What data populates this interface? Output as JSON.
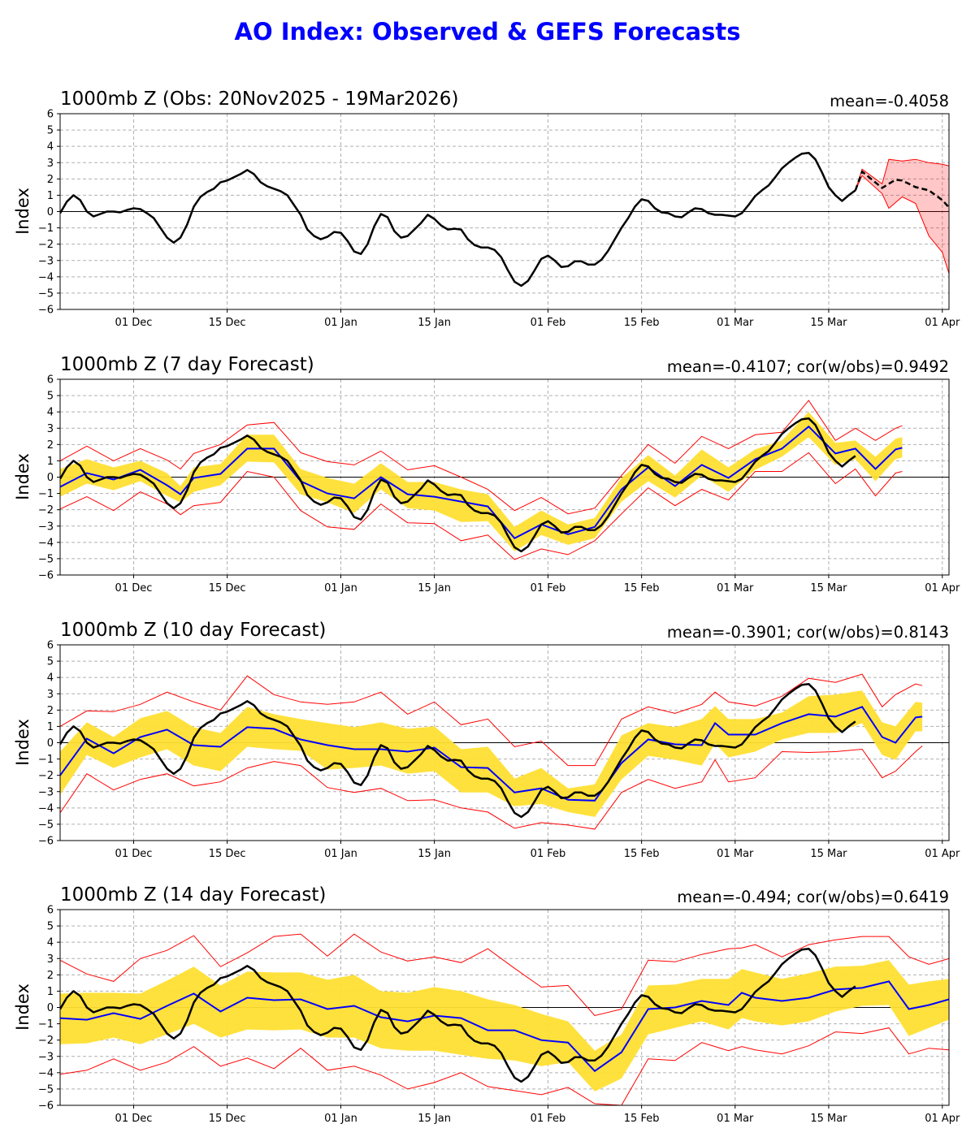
{
  "title": "AO Index: Observed & GEFS Forecasts",
  "colors": {
    "title": "#0000FF",
    "observed": "#000000",
    "forecast_mean": "#0000FF",
    "band": "#FFDF33",
    "ensemble": "#FF0000",
    "grid": "#B0B0B0"
  },
  "chart_data": [
    {
      "type": "line",
      "title": "1000mb Z (Obs: 20Nov2025 - 19Mar2026)",
      "stat": "mean=-0.4058",
      "ylabel": "Index",
      "ylim": [
        -6,
        6
      ],
      "xlim": [
        "2025-11-20",
        "2026-04-02"
      ],
      "grid": true,
      "yticks": [
        -6,
        -5,
        -4,
        -3,
        -2,
        -1,
        0,
        1,
        2,
        3,
        4,
        5,
        6
      ],
      "xticks": [
        {
          "date": "2025-12-01",
          "label": "01 Dec"
        },
        {
          "date": "2025-12-15",
          "label": "15 Dec"
        },
        {
          "date": "2026-01-01",
          "label": "01 Jan"
        },
        {
          "date": "2026-01-15",
          "label": "15 Jan"
        },
        {
          "date": "2026-02-01",
          "label": "01 Feb"
        },
        {
          "date": "2026-02-15",
          "label": "15 Feb"
        },
        {
          "date": "2026-03-01",
          "label": "01 Mar"
        },
        {
          "date": "2026-03-15",
          "label": "15 Mar"
        },
        {
          "date": "2026-04-01",
          "label": "01 Apr"
        }
      ],
      "ensemble_mean": {
        "dates": [
          "2026-03-19",
          "2026-03-20",
          "2026-03-23",
          "2026-03-25",
          "2026-03-26",
          "2026-03-28",
          "2026-03-30",
          "2026-04-01",
          "2026-04-02"
        ],
        "values": [
          1.3,
          2.45,
          1.45,
          1.95,
          1.9,
          1.5,
          1.3,
          0.7,
          0.25
        ]
      },
      "ensemble_spread": {
        "dates": [
          "2026-03-19",
          "2026-03-20",
          "2026-03-23",
          "2026-03-24",
          "2026-03-26",
          "2026-03-28",
          "2026-03-30",
          "2026-04-01",
          "2026-04-02"
        ],
        "max": [
          1.3,
          2.6,
          1.7,
          3.2,
          3.1,
          3.2,
          3.0,
          2.9,
          2.8
        ],
        "min": [
          1.3,
          2.2,
          1.1,
          0.2,
          0.9,
          0.5,
          -1.5,
          -2.5,
          -3.8
        ]
      }
    },
    {
      "type": "line",
      "title": "1000mb Z (7 day Forecast)",
      "stat": "mean=-0.4107; cor(w/obs)=0.9492",
      "ylabel": "Index",
      "ylim": [
        -6,
        6
      ],
      "forecast": {
        "dates": [
          "2025-11-20",
          "2025-11-24",
          "2025-11-28",
          "2025-12-02",
          "2025-12-06",
          "2025-12-08",
          "2025-12-10",
          "2025-12-14",
          "2025-12-18",
          "2025-12-22",
          "2025-12-26",
          "2025-12-30",
          "2026-01-03",
          "2026-01-07",
          "2026-01-11",
          "2026-01-15",
          "2026-01-19",
          "2026-01-23",
          "2026-01-27",
          "2026-01-31",
          "2026-02-04",
          "2026-02-08",
          "2026-02-12",
          "2026-02-16",
          "2026-02-20",
          "2026-02-24",
          "2026-02-28",
          "2026-03-04",
          "2026-03-08",
          "2026-03-12",
          "2026-03-16",
          "2026-03-19",
          "2026-03-22",
          "2026-03-25",
          "2026-03-26"
        ],
        "mean": [
          -0.6,
          0.25,
          -0.15,
          0.45,
          -0.5,
          -1.05,
          -0.05,
          0.2,
          1.75,
          1.75,
          -0.25,
          -1.0,
          -1.3,
          0.0,
          -1.05,
          -1.2,
          -1.5,
          -1.8,
          -3.75,
          -2.9,
          -3.5,
          -3.05,
          -0.75,
          0.6,
          -0.55,
          0.75,
          -0.05,
          1.1,
          1.75,
          3.1,
          1.45,
          1.75,
          0.5,
          1.7,
          1.8
        ],
        "band_low": [
          -1.2,
          -0.4,
          -0.8,
          -0.25,
          -1.15,
          -1.55,
          -0.9,
          -0.5,
          0.95,
          0.9,
          -1.05,
          -1.55,
          -2.2,
          -0.75,
          -1.9,
          -2.05,
          -2.75,
          -2.7,
          -4.55,
          -3.55,
          -4.15,
          -3.75,
          -1.5,
          -0.25,
          -1.25,
          0.1,
          -0.9,
          0.45,
          1.25,
          2.45,
          0.75,
          1.1,
          -0.25,
          1.1,
          1.2
        ],
        "band_high": [
          0.5,
          1.1,
          0.6,
          1.0,
          0.25,
          -0.55,
          0.6,
          0.8,
          2.6,
          2.6,
          0.5,
          -0.05,
          -0.4,
          0.85,
          -0.3,
          -0.3,
          -0.75,
          -1.05,
          -3.05,
          -2.05,
          -2.9,
          -2.5,
          -0.05,
          1.35,
          0.1,
          1.7,
          0.6,
          1.7,
          2.25,
          4.0,
          2.1,
          2.25,
          1.25,
          2.35,
          2.45
        ],
        "max": [
          1.0,
          1.9,
          1.0,
          1.75,
          1.05,
          0.5,
          1.45,
          2.0,
          3.2,
          3.35,
          1.5,
          0.95,
          0.75,
          1.6,
          0.45,
          0.7,
          0.0,
          -0.75,
          -2.05,
          -1.25,
          -2.25,
          -1.9,
          0.1,
          2.0,
          0.85,
          2.5,
          1.75,
          2.6,
          2.75,
          4.7,
          2.25,
          3.0,
          2.25,
          3.0,
          3.15
        ],
        "min": [
          -1.95,
          -1.2,
          -2.05,
          -0.9,
          -1.65,
          -2.3,
          -1.75,
          -1.55,
          0.35,
          0.0,
          -2.05,
          -3.05,
          -3.2,
          -1.65,
          -2.8,
          -2.85,
          -3.9,
          -3.55,
          -5.05,
          -4.4,
          -4.75,
          -3.9,
          -2.25,
          -0.65,
          -1.75,
          -0.75,
          -1.4,
          0.35,
          0.35,
          1.5,
          -0.4,
          0.5,
          -1.15,
          0.25,
          0.35
        ]
      }
    },
    {
      "type": "line",
      "title": "1000mb Z (10 day Forecast)",
      "stat": "mean=-0.3901; cor(w/obs)=0.8143",
      "ylabel": "Index",
      "ylim": [
        -6,
        6
      ],
      "forecast": {
        "dates": [
          "2025-11-20",
          "2025-11-24",
          "2025-11-28",
          "2025-12-02",
          "2025-12-06",
          "2025-12-10",
          "2025-12-14",
          "2025-12-18",
          "2025-12-22",
          "2025-12-26",
          "2025-12-30",
          "2026-01-03",
          "2026-01-07",
          "2026-01-11",
          "2026-01-15",
          "2026-01-19",
          "2026-01-23",
          "2026-01-27",
          "2026-01-31",
          "2026-02-04",
          "2026-02-08",
          "2026-02-12",
          "2026-02-16",
          "2026-02-20",
          "2026-02-24",
          "2026-02-26",
          "2026-02-28",
          "2026-03-04",
          "2026-03-08",
          "2026-03-12",
          "2026-03-16",
          "2026-03-20",
          "2026-03-23",
          "2026-03-25",
          "2026-03-28",
          "2026-03-29"
        ],
        "mean": [
          -2.0,
          0.25,
          -0.65,
          0.35,
          0.8,
          -0.15,
          -0.25,
          0.95,
          0.85,
          0.2,
          -0.15,
          -0.4,
          -0.4,
          -0.55,
          -0.3,
          -1.5,
          -1.55,
          -3.05,
          -2.8,
          -3.5,
          -3.55,
          -1.25,
          0.2,
          -0.1,
          -0.15,
          1.2,
          0.5,
          0.5,
          1.2,
          1.75,
          1.6,
          2.2,
          0.35,
          0.0,
          1.55,
          1.6
        ],
        "band_low": [
          -3.2,
          -0.75,
          -1.55,
          -0.9,
          -0.4,
          -1.4,
          -1.75,
          -0.25,
          -0.4,
          -0.5,
          -1.65,
          -1.55,
          -1.4,
          -1.9,
          -1.75,
          -3.05,
          -3.05,
          -3.9,
          -3.75,
          -4.25,
          -4.55,
          -2.25,
          -0.8,
          -1.05,
          -1.4,
          -0.05,
          -0.9,
          -0.55,
          0.2,
          0.6,
          0.6,
          1.2,
          -0.75,
          -1.05,
          0.7,
          0.7
        ],
        "band_high": [
          -0.55,
          1.25,
          0.35,
          1.5,
          1.95,
          0.95,
          0.6,
          2.2,
          1.75,
          1.45,
          1.2,
          0.95,
          1.25,
          0.85,
          1.0,
          -0.4,
          -0.25,
          -2.2,
          -1.55,
          -2.8,
          -2.55,
          0.45,
          1.2,
          0.95,
          1.45,
          2.25,
          1.45,
          1.45,
          1.85,
          2.85,
          2.95,
          3.2,
          1.25,
          1.0,
          2.5,
          2.45
        ],
        "max": [
          1.0,
          1.95,
          1.9,
          2.35,
          3.1,
          2.5,
          2.0,
          4.1,
          2.95,
          2.5,
          2.35,
          2.5,
          3.1,
          1.75,
          2.5,
          1.1,
          1.45,
          -0.25,
          0.1,
          -1.4,
          -1.4,
          1.45,
          2.2,
          1.8,
          2.35,
          3.1,
          2.5,
          2.25,
          2.85,
          3.95,
          3.7,
          4.2,
          2.2,
          2.95,
          3.6,
          3.5
        ],
        "min": [
          -4.3,
          -1.9,
          -2.9,
          -2.25,
          -1.9,
          -2.65,
          -2.4,
          -1.55,
          -1.15,
          -1.4,
          -2.75,
          -3.05,
          -2.8,
          -3.55,
          -3.5,
          -4.0,
          -4.25,
          -5.25,
          -4.9,
          -5.05,
          -5.3,
          -3.05,
          -2.25,
          -2.8,
          -2.4,
          -1.05,
          -2.4,
          -2.15,
          -0.55,
          -0.6,
          -0.55,
          -0.4,
          -2.15,
          -1.75,
          -0.55,
          -0.2
        ]
      }
    },
    {
      "type": "line",
      "title": "1000mb Z (14 day Forecast)",
      "stat": "mean=-0.494; cor(w/obs)=0.6419",
      "ylabel": "Index",
      "ylim": [
        -6,
        6
      ],
      "forecast": {
        "dates": [
          "2025-11-20",
          "2025-11-24",
          "2025-11-28",
          "2025-12-02",
          "2025-12-06",
          "2025-12-10",
          "2025-12-14",
          "2025-12-18",
          "2025-12-22",
          "2025-12-26",
          "2025-12-30",
          "2026-01-03",
          "2026-01-07",
          "2026-01-11",
          "2026-01-15",
          "2026-01-19",
          "2026-01-23",
          "2026-01-27",
          "2026-01-31",
          "2026-02-04",
          "2026-02-08",
          "2026-02-12",
          "2026-02-16",
          "2026-02-20",
          "2026-02-24",
          "2026-02-28",
          "2026-03-02",
          "2026-03-04",
          "2026-03-08",
          "2026-03-12",
          "2026-03-16",
          "2026-03-20",
          "2026-03-24",
          "2026-03-27",
          "2026-03-30",
          "2026-04-02"
        ],
        "mean": [
          -0.65,
          -0.75,
          -0.35,
          -0.7,
          0.1,
          0.85,
          -0.25,
          0.6,
          0.45,
          0.5,
          -0.1,
          0.1,
          -0.6,
          -0.85,
          -0.5,
          -0.65,
          -1.4,
          -1.4,
          -2.0,
          -2.15,
          -3.9,
          -2.75,
          -0.1,
          0.0,
          0.4,
          0.15,
          0.9,
          0.6,
          0.4,
          0.6,
          1.1,
          1.2,
          1.6,
          -0.1,
          0.15,
          0.5
        ],
        "band_low": [
          -2.25,
          -2.2,
          -1.85,
          -2.25,
          -1.65,
          -1.0,
          -1.85,
          -1.35,
          -1.4,
          -1.35,
          -1.85,
          -1.85,
          -2.5,
          -2.65,
          -2.65,
          -2.9,
          -3.15,
          -3.25,
          -3.6,
          -3.35,
          -5.15,
          -4.35,
          -1.65,
          -1.25,
          -0.85,
          -1.35,
          -0.65,
          -0.85,
          -1.1,
          -0.85,
          -0.25,
          0.1,
          0.15,
          -1.75,
          -1.25,
          -0.75
        ],
        "band_high": [
          0.85,
          0.9,
          0.9,
          0.85,
          1.65,
          2.5,
          1.35,
          2.2,
          2.15,
          2.15,
          1.7,
          2.0,
          1.0,
          0.9,
          1.25,
          1.0,
          0.5,
          0.15,
          -0.4,
          -0.85,
          -2.65,
          -1.65,
          1.35,
          1.4,
          1.75,
          1.75,
          2.35,
          2.15,
          1.75,
          2.1,
          2.5,
          2.55,
          2.9,
          1.4,
          1.6,
          1.75
        ],
        "max": [
          2.9,
          2.05,
          1.6,
          3.0,
          3.5,
          4.4,
          2.5,
          3.35,
          4.35,
          4.5,
          3.15,
          4.5,
          3.4,
          2.85,
          3.1,
          2.75,
          3.6,
          2.4,
          1.25,
          1.35,
          -0.5,
          -0.1,
          2.9,
          2.8,
          3.25,
          3.6,
          3.65,
          3.85,
          3.1,
          3.85,
          4.15,
          4.35,
          4.35,
          3.1,
          2.65,
          3.0
        ],
        "min": [
          -4.1,
          -3.85,
          -3.15,
          -3.85,
          -3.35,
          -2.4,
          -3.6,
          -3.1,
          -3.75,
          -2.5,
          -3.85,
          -3.6,
          -4.15,
          -5.0,
          -4.6,
          -4.0,
          -4.85,
          -5.1,
          -5.35,
          -4.9,
          -5.9,
          -6.0,
          -3.15,
          -3.25,
          -2.15,
          -2.65,
          -2.4,
          -2.6,
          -2.85,
          -2.35,
          -1.5,
          -1.6,
          -1.25,
          -2.85,
          -2.5,
          -2.6
        ]
      }
    }
  ],
  "observed": {
    "start": "2025-11-20",
    "end": "2026-03-19",
    "values": [
      -0.1,
      0.6,
      1.0,
      0.7,
      0.0,
      -0.3,
      -0.15,
      0,
      0,
      -0.05,
      0.1,
      0.2,
      0.15,
      -0.1,
      -0.4,
      -1.0,
      -1.6,
      -1.9,
      -1.6,
      -0.8,
      0.3,
      0.9,
      1.2,
      1.4,
      1.8,
      1.9,
      2.1,
      2.3,
      2.55,
      2.3,
      1.8,
      1.55,
      1.4,
      1.25,
      1.0,
      0.4,
      -0.2,
      -1.1,
      -1.5,
      -1.7,
      -1.55,
      -1.25,
      -1.3,
      -1.8,
      -2.45,
      -2.6,
      -2.0,
      -0.9,
      -0.15,
      -0.35,
      -1.2,
      -1.6,
      -1.5,
      -1.1,
      -0.7,
      -0.2,
      -0.45,
      -0.85,
      -1.1,
      -1.05,
      -1.1,
      -1.7,
      -2.05,
      -2.2,
      -2.2,
      -2.35,
      -2.8,
      -3.6,
      -4.3,
      -4.55,
      -4.25,
      -3.6,
      -2.9,
      -2.7,
      -3.0,
      -3.4,
      -3.35,
      -3.05,
      -3.05,
      -3.25,
      -3.25,
      -2.95,
      -2.4,
      -1.7,
      -1.0,
      -0.4,
      0.3,
      0.75,
      0.65,
      0.2,
      -0.05,
      -0.1,
      -0.3,
      -0.35,
      -0.05,
      0.2,
      0.15,
      -0.1,
      -0.2,
      -0.2,
      -0.25,
      -0.3,
      -0.1,
      0.4,
      0.95,
      1.3,
      1.6,
      2.1,
      2.65,
      3.0,
      3.3,
      3.55,
      3.6,
      3.2,
      2.4,
      1.5,
      1.0,
      0.65,
      1.0,
      1.3
    ]
  }
}
